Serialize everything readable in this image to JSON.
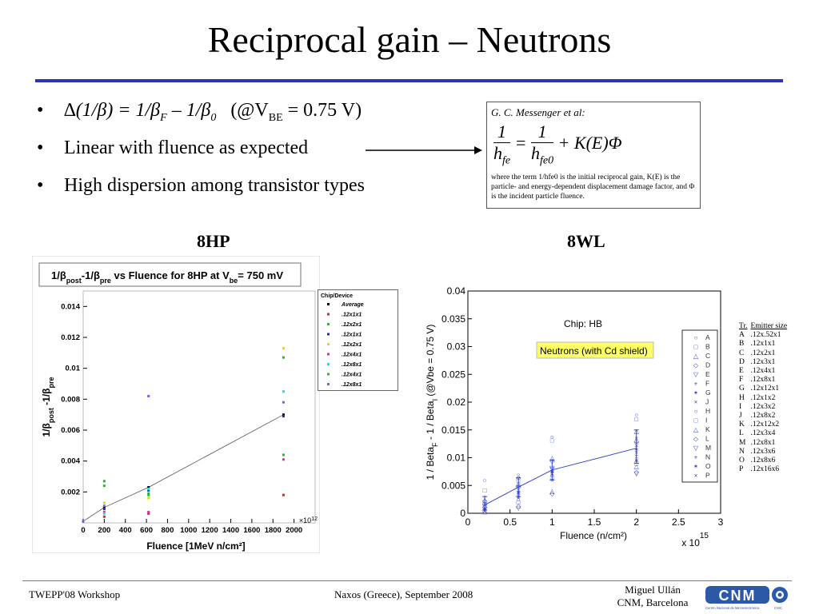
{
  "slide": {
    "title": "Reciprocal gain – Neutrons",
    "bullets": [
      {
        "delta": "∆",
        "expr_1": "(1/",
        "beta": "β",
        "expr_2": ") = 1/",
        "beta_f": "β",
        "sub_f": "F",
        "minus": " – 1/",
        "beta_0": "β",
        "sub_0": "0",
        "cond_1": "(@V",
        "cond_sub": "BE",
        "cond_2": " = 0.75 V)"
      },
      {
        "text": "Linear with fluence as expected"
      },
      {
        "text": "High dispersion among transistor types"
      }
    ],
    "reference": {
      "author": "G. C. Messenger et al:",
      "eq_lhs_num": "1",
      "eq_lhs_den": "h",
      "eq_lhs_den_sub": "fe",
      "eq_eq": "=",
      "eq_rhs_num": "1",
      "eq_rhs_den": "h",
      "eq_rhs_den_sub": "fe0",
      "eq_tail": "+ K(E)Φ",
      "note": "where the term 1/hfe0 is the initial reciprocal gain, K(E) is the particle- and energy-dependent displacement damage factor, and Φ is the incident particle fluence."
    },
    "plot_labels": [
      "8HP",
      "8WL"
    ]
  },
  "chart_data": [
    {
      "type": "scatter",
      "title_parts": [
        "1/",
        "β",
        "post",
        "-1/",
        "β",
        "pre",
        " vs Fluence for 8HP at V",
        "be",
        "= 750 mV"
      ],
      "xlabel": "Fluence [1MeV n/cm²]",
      "x_exponent_label": "×10",
      "x_exponent": "12",
      "ylabel_parts": [
        "1/",
        "β",
        "post",
        " -1/",
        "β",
        "pre"
      ],
      "xlim": [
        0,
        2200
      ],
      "ylim": [
        0,
        0.015
      ],
      "x_ticks": [
        0,
        200,
        400,
        600,
        800,
        1000,
        1200,
        1400,
        1600,
        1800,
        2000
      ],
      "y_ticks": [
        0.002,
        0.004,
        0.006,
        0.008,
        0.01,
        0.012,
        0.014
      ],
      "legend_title": "Chip/Device",
      "legend_position": "top-right",
      "series": [
        {
          "name": "Average",
          "color": "#000000",
          "x": [
            0,
            200,
            620,
            1900
          ],
          "y": [
            0.0001,
            0.001,
            0.0023,
            0.007
          ],
          "line": true
        },
        {
          "name": ".12x1x1",
          "color": "#e02020",
          "x": [
            0,
            200,
            620,
            1900
          ],
          "y": [
            0.0001,
            0.0004,
            0.0006,
            0.0018
          ]
        },
        {
          "name": ".12x2x1",
          "color": "#22bb22",
          "x": [
            0,
            200,
            620,
            1900
          ],
          "y": [
            0.0001,
            0.0024,
            0.0018,
            0.0107
          ]
        },
        {
          "name": ".12x1x1",
          "color": "#2020dd",
          "x": [
            0,
            200,
            620,
            1900
          ],
          "y": [
            0.0001,
            0.0009,
            0.0021,
            0.0069
          ]
        },
        {
          "name": ".12x2x1",
          "color": "#dddd00",
          "x": [
            0,
            200,
            620,
            1900
          ],
          "y": [
            0.0001,
            0.0013,
            0.0016,
            0.0113
          ]
        },
        {
          "name": ".12x4x1",
          "color": "#dd22dd",
          "x": [
            0,
            200,
            620,
            1900
          ],
          "y": [
            0.0001,
            0.0007,
            0.0007,
            0.0041
          ]
        },
        {
          "name": ".12x8x1",
          "color": "#22dddd",
          "x": [
            0,
            200,
            620,
            1900
          ],
          "y": [
            0.0001,
            0.0006,
            0.0022,
            0.0085
          ]
        },
        {
          "name": ".12x4x1",
          "color": "#22bb22",
          "x": [
            0,
            200,
            620,
            1900
          ],
          "y": [
            0.0001,
            0.0027,
            0.0019,
            0.0044
          ]
        },
        {
          "name": ".12x8x1",
          "color": "#6666ee",
          "x": [
            0,
            200,
            620,
            1900
          ],
          "y": [
            0.0001,
            0.0011,
            0.0082,
            0.0078
          ]
        }
      ]
    },
    {
      "type": "scatter",
      "xlabel": "Fluence (n/cm²)",
      "x_exponent_label": "x 10",
      "x_exponent": "15",
      "ylabel": "1 / Beta_F - 1 / Beta_I (@Vbe = 0.75 V)",
      "ylabel_parts": [
        "1 / Beta",
        "F",
        " - 1 / Beta",
        "I",
        " (@Vbe = 0.75 V)"
      ],
      "xlim": [
        0,
        3
      ],
      "ylim": [
        0,
        0.04
      ],
      "x_ticks": [
        "0",
        "0.5",
        "1",
        "1.5",
        "2",
        "2.5",
        "3"
      ],
      "y_ticks": [
        "0",
        "0.005",
        "0.01",
        "0.015",
        "0.02",
        "0.025",
        "0.03",
        "0.035",
        "0.04"
      ],
      "annotations": [
        "Chip: HB",
        "Neutrons (with Cd shield)"
      ],
      "color": "#3344cc",
      "legend_position": "right",
      "legend_symbols": [
        "○",
        "□",
        "△",
        "◇",
        "▽",
        "+",
        "✶",
        "×",
        "○",
        "□",
        "△",
        "◇",
        "▽",
        "+",
        "✶",
        "×"
      ],
      "legend_letters": [
        "A",
        "B",
        "C",
        "D",
        "E",
        "F",
        "G",
        "J",
        "H",
        "I",
        "K",
        "L",
        "M",
        "N",
        "O",
        "P"
      ],
      "mean_line": {
        "x": [
          0.2,
          0.6,
          1.0,
          2.0
        ],
        "y": [
          0.0015,
          0.0047,
          0.0078,
          0.0117
        ]
      },
      "error_bars": [
        [
          0.0006,
          0.003
        ],
        [
          0.003,
          0.0064
        ],
        [
          0.006,
          0.0096
        ],
        [
          0.009,
          0.015
        ]
      ],
      "points": [
        {
          "x": 0.2,
          "y": [
            0.006,
            0.0042,
            0.0025,
            0.0018,
            0.0013,
            0.001,
            0.0008,
            0.0005,
            0.0003,
            0.0002,
            0.0015,
            0.0012,
            0.002,
            0.003,
            0.0007,
            0.0004
          ]
        },
        {
          "x": 0.6,
          "y": [
            0.007,
            0.006,
            0.0055,
            0.005,
            0.0045,
            0.004,
            0.0035,
            0.003,
            0.0025,
            0.002,
            0.0015,
            0.0065,
            0.001,
            0.0048,
            0.0038,
            0.0028
          ]
        },
        {
          "x": 1.0,
          "y": [
            0.0138,
            0.0132,
            0.01,
            0.0095,
            0.0082,
            0.0078,
            0.0075,
            0.0072,
            0.0068,
            0.0065,
            0.004,
            0.0036,
            0.008,
            0.007,
            0.0074,
            0.006
          ]
        },
        {
          "x": 2.0,
          "y": [
            0.0178,
            0.017,
            0.0148,
            0.013,
            0.0125,
            0.012,
            0.0115,
            0.011,
            0.01,
            0.009,
            0.0085,
            0.0075,
            0.0072,
            0.0105,
            0.0095,
            0.0135
          ]
        }
      ],
      "legend_table": {
        "headers": [
          "Tr.",
          "Emitter size"
        ],
        "rows": [
          [
            "A",
            ".12x.52x1"
          ],
          [
            "B",
            ".12x1x1"
          ],
          [
            "C",
            ".12x2x1"
          ],
          [
            "D",
            ".12x3x1"
          ],
          [
            "E",
            ".12x4x1"
          ],
          [
            "F",
            ".12x8x1"
          ],
          [
            "G",
            ".12x12x1"
          ],
          [
            "H",
            ".12x1x2"
          ],
          [
            "I",
            ".12x3x2"
          ],
          [
            "J",
            ".12x8x2"
          ],
          [
            "K",
            ".12x12x2"
          ],
          [
            "L",
            ".12x3x4"
          ],
          [
            "M",
            ".12x8x1"
          ],
          [
            "N",
            ".12x3x6"
          ],
          [
            "O",
            ".12x8x6"
          ],
          [
            "P",
            ".12x16x6"
          ]
        ]
      }
    }
  ],
  "footer": {
    "left": "TWEPP'08 Workshop",
    "middle": "Naxos (Greece), September 2008",
    "right_line1": "Miguel Ullán",
    "right_line2": "CNM, Barcelona",
    "logo_text": "CNM",
    "logo_sub": "Centro Nacional de Microelectrónica",
    "logo_sub2": "CSIC"
  }
}
